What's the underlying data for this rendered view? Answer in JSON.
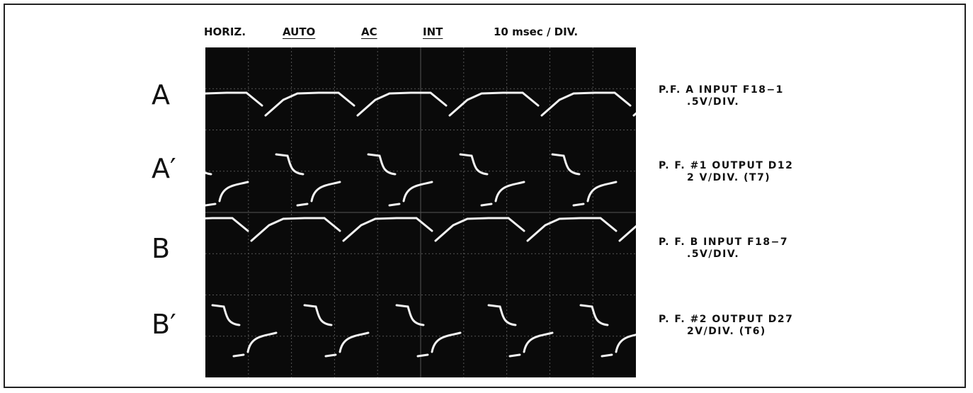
{
  "header": {
    "items": [
      "HORIZ.",
      "AUTO",
      "AC",
      "INT",
      "10 msec / DIV."
    ]
  },
  "channels": [
    {
      "label": "A",
      "description": [
        "P.F. A INPUT F18−1",
        ".5V/DIV."
      ]
    },
    {
      "label": "A′",
      "description": [
        "P. F. #1 OUTPUT D12",
        "2 V/DIV.  (T7)"
      ]
    },
    {
      "label": "B",
      "description": [
        "P. F. B INPUT F18−7",
        ".5V/DIV."
      ]
    },
    {
      "label": "B′",
      "description": [
        "P. F. #2 OUTPUT D27",
        "2V/DIV.   (T6)"
      ]
    }
  ]
}
